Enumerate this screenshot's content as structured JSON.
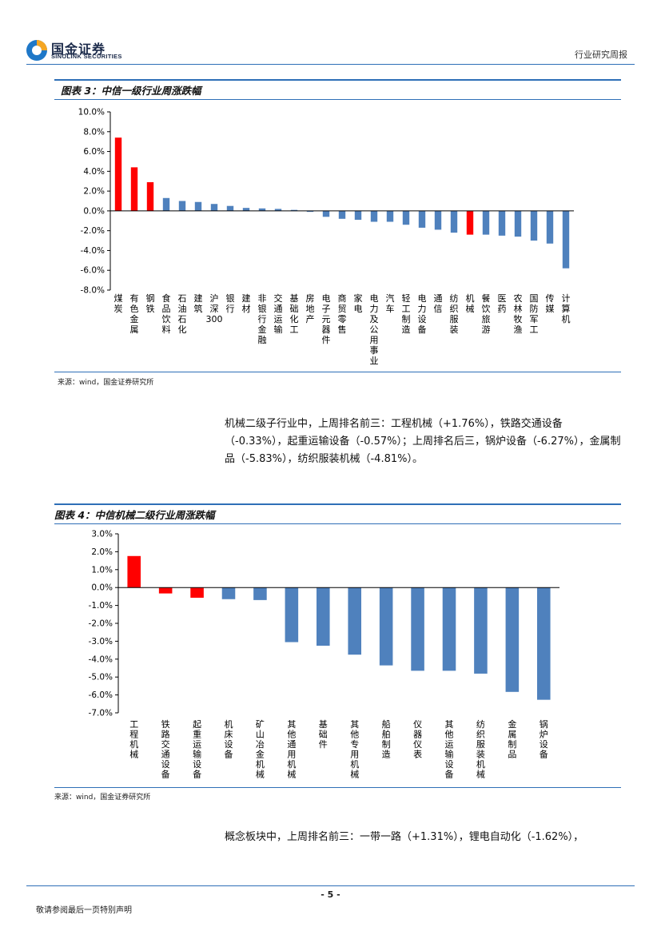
{
  "header": {
    "logo_cn": "国金证券",
    "logo_en": "SINOLINK SECURITIES",
    "report_type": "行业研究周报"
  },
  "figure3": {
    "title": "图表 3：中信一级行业周涨跌幅",
    "source": "来源：wind，国金证券研究所"
  },
  "paragraph1": "机械二级子行业中，上周排名前三：工程机械（+1.76%），铁路交通设备（-0.33%），起重运输设备（-0.57%）；上周排名后三，锅炉设备（-6.27%），金属制品（-5.83%），纺织服装机械（-4.81%）。",
  "figure4": {
    "title": "图表 4：中信机械二级行业周涨跌幅",
    "source": "来源：wind，国金证券研究所"
  },
  "paragraph2": "概念板块中，上周排名前三：一带一路（+1.31%），锂电自动化（-1.62%），",
  "footer": {
    "page": "- 5 -",
    "note": "敬请参阅最后一页特别声明"
  },
  "colors": {
    "highlight": "#ff0000",
    "normal": "#4f81bd",
    "rule": "#2e6fb7"
  },
  "chart_data": [
    {
      "type": "bar",
      "ylim": [
        -8,
        10
      ],
      "yticks": [
        "10.0%",
        "8.0%",
        "6.0%",
        "4.0%",
        "2.0%",
        "0.0%",
        "-2.0%",
        "-4.0%",
        "-6.0%",
        "-8.0%"
      ],
      "ytick_values": [
        10,
        8,
        6,
        4,
        2,
        0,
        -2,
        -4,
        -6,
        -8
      ],
      "categories": [
        "煤炭",
        "有色金属",
        "钢铁",
        "食品饮料",
        "石油石化",
        "建筑",
        "沪深300",
        "银行",
        "建材",
        "非银行金融",
        "交通运输",
        "基础化工",
        "房地产",
        "电子元器件",
        "商贸零售",
        "家电",
        "电力及公用事业",
        "汽车",
        "轻工制造",
        "电力设备",
        "通信",
        "纺织服装",
        "机械",
        "餐饮旅游",
        "医药",
        "农林牧渔",
        "国防军工",
        "传媒",
        "计算机"
      ],
      "values": [
        7.4,
        4.4,
        2.9,
        1.3,
        1.0,
        0.9,
        0.7,
        0.5,
        0.3,
        0.25,
        0.2,
        0.1,
        -0.1,
        -0.6,
        -0.8,
        -0.9,
        -1.1,
        -1.1,
        -1.4,
        -1.7,
        -1.9,
        -2.2,
        -2.4,
        -2.4,
        -2.5,
        -2.6,
        -3.0,
        -3.3,
        -5.8
      ],
      "highlight": [
        0,
        1,
        2,
        22
      ],
      "xlabel": "",
      "ylabel": "",
      "grid": false
    },
    {
      "type": "bar",
      "ylim": [
        -7,
        3
      ],
      "yticks": [
        "3.0%",
        "2.0%",
        "1.0%",
        "0.0%",
        "-1.0%",
        "-2.0%",
        "-3.0%",
        "-4.0%",
        "-5.0%",
        "-6.0%",
        "-7.0%"
      ],
      "ytick_values": [
        3,
        2,
        1,
        0,
        -1,
        -2,
        -3,
        -4,
        -5,
        -6,
        -7
      ],
      "categories": [
        "工程机械",
        "铁路交通设备",
        "起重运输设备",
        "机床设备",
        "矿山冶金机械",
        "其他通用机械",
        "基础件",
        "其他专用机械",
        "船舶制造",
        "仪器仪表",
        "其他运输设备",
        "纺织服装机械",
        "金属制品",
        "锅炉设备"
      ],
      "values": [
        1.76,
        -0.33,
        -0.57,
        -0.65,
        -0.7,
        -3.05,
        -3.25,
        -3.75,
        -4.35,
        -4.65,
        -4.65,
        -4.81,
        -5.83,
        -6.27
      ],
      "highlight": [
        0,
        1,
        2
      ],
      "xlabel": "",
      "ylabel": "",
      "grid": false
    }
  ]
}
